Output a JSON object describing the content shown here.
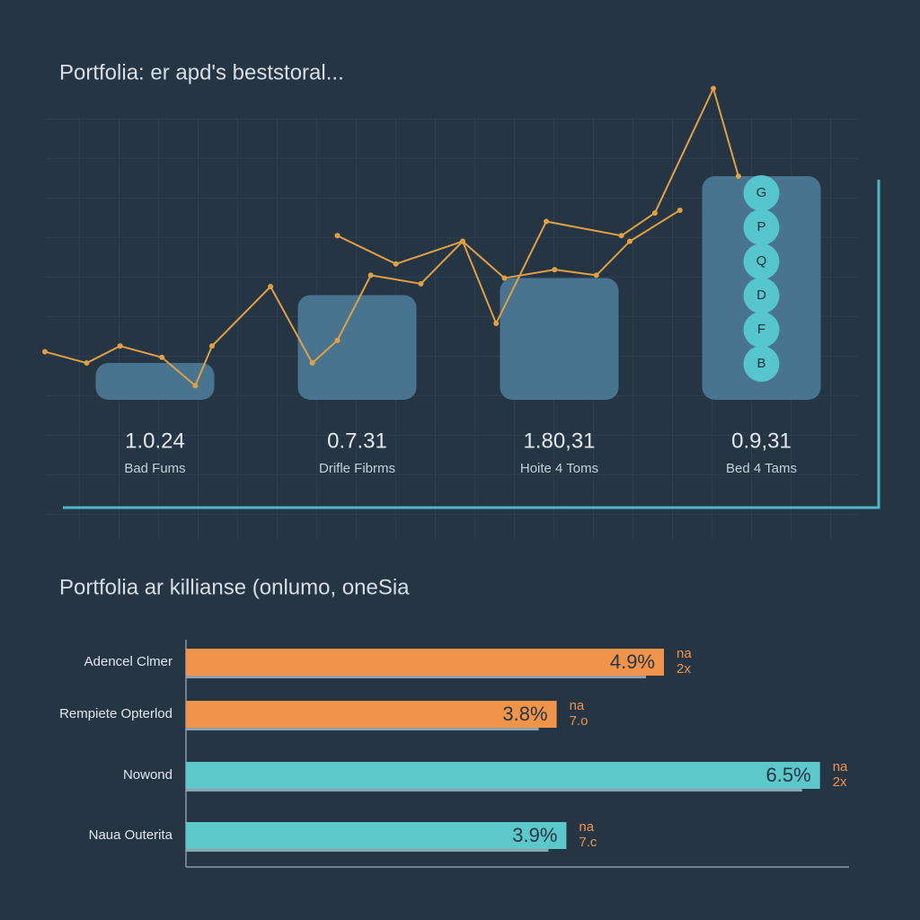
{
  "chart_data": [
    {
      "type": "combo",
      "title": "Portfolia: er apd's beststoral...",
      "labels": [
        "1.0.24",
        "0.7.31",
        "1.80,31",
        "0.9,31"
      ],
      "categories": [
        "Bad Fums",
        "Drifle Fibrms",
        "Hoite 4 Toms",
        "Bed 4 Tams"
      ],
      "values": [
        13,
        37,
        43,
        79
      ],
      "color": "#4f7f9c",
      "ylim": [
        0,
        120
      ],
      "bubbles": [
        "B",
        "F",
        "D",
        "Q",
        "P",
        "G"
      ],
      "bubble_color": "#56c6cc",
      "lines": [
        {
          "color": "#e0a045",
          "x": [
            0,
            5,
            9,
            14,
            18,
            20,
            27,
            32,
            35,
            39,
            45,
            50,
            54,
            60,
            69,
            73,
            80,
            83
          ],
          "values": [
            17,
            13,
            19,
            15,
            5,
            19,
            40,
            13,
            21,
            44,
            41,
            56,
            27,
            63,
            58,
            66,
            110,
            79
          ]
        },
        {
          "color": "#e0a045",
          "x": [
            35,
            42,
            50,
            55,
            61,
            66,
            70,
            76
          ],
          "values": [
            58,
            48,
            56,
            43,
            46,
            44,
            56,
            67
          ]
        }
      ],
      "xlim": [
        0,
        100
      ]
    },
    {
      "type": "hbar",
      "title": "Portfolia ar killianse (onlumo, oneSia",
      "categories": [
        "Adencel Clmer",
        "Rempiete Opterlod",
        "Nowond",
        "Naua Outerita"
      ],
      "values": [
        4.9,
        3.8,
        6.5,
        3.9
      ],
      "value_labels": [
        "4.9%",
        "3.8%",
        "6.5%",
        "3.9%"
      ],
      "colors": [
        "#f0944a",
        "#f0944a",
        "#5cc8cc",
        "#5cc8cc"
      ],
      "annotations": [
        [
          "na",
          "2x"
        ],
        [
          "na",
          "7.o"
        ],
        [
          "na",
          "2x"
        ],
        [
          "na",
          "7.c"
        ]
      ],
      "xlim": [
        0,
        7
      ]
    }
  ]
}
